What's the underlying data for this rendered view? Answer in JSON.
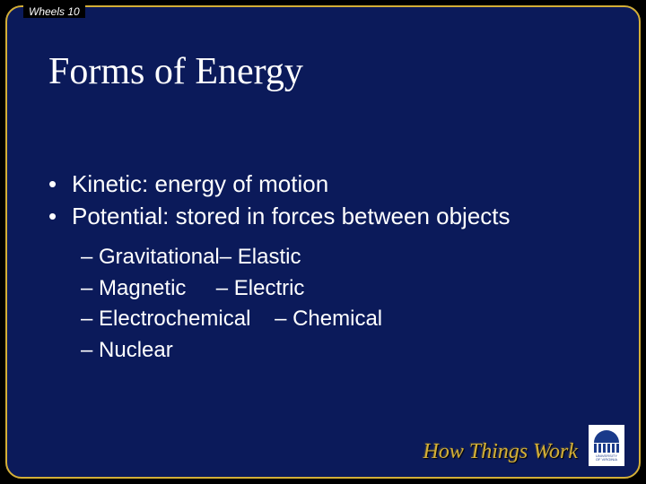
{
  "header": {
    "label": "Wheels 10"
  },
  "title": "Forms of Energy",
  "bullets": [
    "Kinetic: energy of motion",
    "Potential: stored in forces between objects"
  ],
  "sub_rows": [
    "– Gravitational– Elastic",
    "– Magnetic     – Electric",
    "– Electrochemical    – Chemical",
    "– Nuclear"
  ],
  "footer": {
    "brand": "How Things Work",
    "seal_alt": "The University of Virginia"
  },
  "colors": {
    "frame_border": "#d4af37",
    "slide_bg": "#0b1a5a",
    "page_bg": "#000000",
    "text": "#ffffff",
    "brand_text": "#d4af37"
  }
}
